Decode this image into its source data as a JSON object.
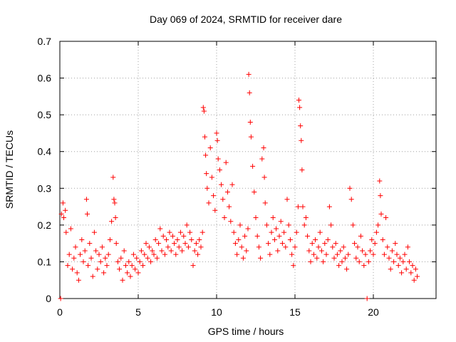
{
  "chart_data": {
    "type": "scatter",
    "title": "Day 069 of 2024, SRMTID for receiver dare",
    "xlabel": "GPS time / hours",
    "ylabel": "SRMTID / TECUs",
    "xlim": [
      0,
      24
    ],
    "ylim": [
      0,
      0.7
    ],
    "xticks": [
      0,
      5,
      10,
      15,
      20
    ],
    "xtick_labels": [
      "0",
      "5",
      "10",
      "15",
      "20"
    ],
    "yticks": [
      0,
      0.1,
      0.2,
      0.3,
      0.4,
      0.5,
      0.6,
      0.7
    ],
    "ytick_labels": [
      "0",
      "0.1",
      "0.2",
      "0.3",
      "0.4",
      "0.5",
      "0.6",
      "0.7"
    ],
    "grid": true,
    "marker": "plus",
    "color": "#ff0000",
    "series": [
      {
        "name": "SRMTID",
        "points": [
          [
            0.05,
            0.0
          ],
          [
            0.1,
            0.23
          ],
          [
            0.2,
            0.26
          ],
          [
            0.25,
            0.22
          ],
          [
            0.35,
            0.24
          ],
          [
            0.4,
            0.18
          ],
          [
            0.5,
            0.09
          ],
          [
            0.6,
            0.12
          ],
          [
            0.7,
            0.19
          ],
          [
            0.8,
            0.08
          ],
          [
            0.9,
            0.11
          ],
          [
            1.0,
            0.14
          ],
          [
            1.1,
            0.07
          ],
          [
            1.2,
            0.05
          ],
          [
            1.3,
            0.12
          ],
          [
            1.4,
            0.16
          ],
          [
            1.5,
            0.1
          ],
          [
            1.6,
            0.13
          ],
          [
            1.7,
            0.27
          ],
          [
            1.75,
            0.23
          ],
          [
            1.8,
            0.09
          ],
          [
            1.9,
            0.15
          ],
          [
            2.0,
            0.11
          ],
          [
            2.1,
            0.06
          ],
          [
            2.2,
            0.18
          ],
          [
            2.3,
            0.13
          ],
          [
            2.4,
            0.08
          ],
          [
            2.5,
            0.12
          ],
          [
            2.6,
            0.1
          ],
          [
            2.7,
            0.14
          ],
          [
            2.8,
            0.07
          ],
          [
            2.9,
            0.11
          ],
          [
            3.0,
            0.09
          ],
          [
            3.1,
            0.12
          ],
          [
            3.2,
            0.16
          ],
          [
            3.3,
            0.21
          ],
          [
            3.4,
            0.33
          ],
          [
            3.45,
            0.27
          ],
          [
            3.5,
            0.26
          ],
          [
            3.55,
            0.22
          ],
          [
            3.6,
            0.15
          ],
          [
            3.7,
            0.1
          ],
          [
            3.8,
            0.08
          ],
          [
            3.9,
            0.11
          ],
          [
            4.0,
            0.05
          ],
          [
            4.1,
            0.13
          ],
          [
            4.2,
            0.09
          ],
          [
            4.3,
            0.07
          ],
          [
            4.4,
            0.1
          ],
          [
            4.5,
            0.06
          ],
          [
            4.6,
            0.09
          ],
          [
            4.7,
            0.12
          ],
          [
            4.8,
            0.08
          ],
          [
            4.9,
            0.11
          ],
          [
            5.0,
            0.07
          ],
          [
            5.1,
            0.1
          ],
          [
            5.2,
            0.13
          ],
          [
            5.3,
            0.09
          ],
          [
            5.4,
            0.12
          ],
          [
            5.5,
            0.15
          ],
          [
            5.6,
            0.11
          ],
          [
            5.7,
            0.14
          ],
          [
            5.8,
            0.1
          ],
          [
            5.9,
            0.13
          ],
          [
            6.0,
            0.12
          ],
          [
            6.1,
            0.16
          ],
          [
            6.2,
            0.11
          ],
          [
            6.3,
            0.15
          ],
          [
            6.4,
            0.19
          ],
          [
            6.5,
            0.13
          ],
          [
            6.6,
            0.17
          ],
          [
            6.7,
            0.12
          ],
          [
            6.8,
            0.16
          ],
          [
            6.9,
            0.14
          ],
          [
            7.0,
            0.18
          ],
          [
            7.1,
            0.13
          ],
          [
            7.2,
            0.17
          ],
          [
            7.3,
            0.15
          ],
          [
            7.4,
            0.12
          ],
          [
            7.5,
            0.16
          ],
          [
            7.6,
            0.14
          ],
          [
            7.7,
            0.18
          ],
          [
            7.8,
            0.13
          ],
          [
            7.9,
            0.17
          ],
          [
            8.0,
            0.15
          ],
          [
            8.1,
            0.2
          ],
          [
            8.2,
            0.14
          ],
          [
            8.3,
            0.18
          ],
          [
            8.4,
            0.16
          ],
          [
            8.5,
            0.09
          ],
          [
            8.6,
            0.13
          ],
          [
            8.7,
            0.15
          ],
          [
            8.8,
            0.12
          ],
          [
            8.9,
            0.16
          ],
          [
            9.0,
            0.14
          ],
          [
            9.1,
            0.18
          ],
          [
            9.15,
            0.52
          ],
          [
            9.2,
            0.51
          ],
          [
            9.25,
            0.44
          ],
          [
            9.3,
            0.39
          ],
          [
            9.35,
            0.34
          ],
          [
            9.4,
            0.3
          ],
          [
            9.5,
            0.26
          ],
          [
            9.6,
            0.41
          ],
          [
            9.7,
            0.33
          ],
          [
            9.8,
            0.28
          ],
          [
            9.9,
            0.24
          ],
          [
            10.0,
            0.45
          ],
          [
            10.05,
            0.43
          ],
          [
            10.1,
            0.38
          ],
          [
            10.2,
            0.35
          ],
          [
            10.3,
            0.31
          ],
          [
            10.4,
            0.27
          ],
          [
            10.5,
            0.22
          ],
          [
            10.6,
            0.37
          ],
          [
            10.7,
            0.29
          ],
          [
            10.8,
            0.25
          ],
          [
            10.9,
            0.21
          ],
          [
            11.0,
            0.31
          ],
          [
            11.1,
            0.18
          ],
          [
            11.2,
            0.15
          ],
          [
            11.3,
            0.12
          ],
          [
            11.4,
            0.16
          ],
          [
            11.5,
            0.2
          ],
          [
            11.6,
            0.14
          ],
          [
            11.7,
            0.11
          ],
          [
            11.8,
            0.17
          ],
          [
            11.9,
            0.13
          ],
          [
            12.0,
            0.19
          ],
          [
            12.05,
            0.61
          ],
          [
            12.1,
            0.56
          ],
          [
            12.15,
            0.48
          ],
          [
            12.2,
            0.44
          ],
          [
            12.3,
            0.36
          ],
          [
            12.4,
            0.29
          ],
          [
            12.5,
            0.22
          ],
          [
            12.6,
            0.17
          ],
          [
            12.7,
            0.14
          ],
          [
            12.8,
            0.11
          ],
          [
            12.9,
            0.38
          ],
          [
            13.0,
            0.41
          ],
          [
            13.05,
            0.33
          ],
          [
            13.1,
            0.26
          ],
          [
            13.2,
            0.2
          ],
          [
            13.3,
            0.15
          ],
          [
            13.4,
            0.12
          ],
          [
            13.5,
            0.18
          ],
          [
            13.6,
            0.22
          ],
          [
            13.7,
            0.16
          ],
          [
            13.8,
            0.19
          ],
          [
            13.9,
            0.13
          ],
          [
            14.0,
            0.17
          ],
          [
            14.1,
            0.21
          ],
          [
            14.2,
            0.15
          ],
          [
            14.3,
            0.18
          ],
          [
            14.4,
            0.14
          ],
          [
            14.5,
            0.27
          ],
          [
            14.6,
            0.2
          ],
          [
            14.7,
            0.16
          ],
          [
            14.8,
            0.12
          ],
          [
            14.9,
            0.09
          ],
          [
            15.0,
            0.14
          ],
          [
            15.1,
            0.18
          ],
          [
            15.2,
            0.25
          ],
          [
            15.25,
            0.54
          ],
          [
            15.3,
            0.52
          ],
          [
            15.35,
            0.47
          ],
          [
            15.4,
            0.43
          ],
          [
            15.45,
            0.35
          ],
          [
            15.5,
            0.25
          ],
          [
            15.6,
            0.2
          ],
          [
            15.7,
            0.22
          ],
          [
            15.8,
            0.17
          ],
          [
            15.9,
            0.13
          ],
          [
            16.0,
            0.1
          ],
          [
            16.1,
            0.15
          ],
          [
            16.2,
            0.12
          ],
          [
            16.3,
            0.16
          ],
          [
            16.4,
            0.11
          ],
          [
            16.5,
            0.14
          ],
          [
            16.6,
            0.18
          ],
          [
            16.7,
            0.13
          ],
          [
            16.8,
            0.1
          ],
          [
            16.9,
            0.15
          ],
          [
            17.0,
            0.12
          ],
          [
            17.1,
            0.16
          ],
          [
            17.2,
            0.25
          ],
          [
            17.3,
            0.2
          ],
          [
            17.4,
            0.14
          ],
          [
            17.5,
            0.11
          ],
          [
            17.6,
            0.15
          ],
          [
            17.7,
            0.12
          ],
          [
            17.8,
            0.09
          ],
          [
            17.9,
            0.13
          ],
          [
            18.0,
            0.1
          ],
          [
            18.1,
            0.14
          ],
          [
            18.2,
            0.11
          ],
          [
            18.3,
            0.08
          ],
          [
            18.4,
            0.12
          ],
          [
            18.5,
            0.3
          ],
          [
            18.6,
            0.27
          ],
          [
            18.7,
            0.2
          ],
          [
            18.8,
            0.15
          ],
          [
            18.9,
            0.11
          ],
          [
            19.0,
            0.14
          ],
          [
            19.1,
            0.1
          ],
          [
            19.2,
            0.17
          ],
          [
            19.3,
            0.13
          ],
          [
            19.4,
            0.09
          ],
          [
            19.5,
            0.12
          ],
          [
            19.6,
            0.0
          ],
          [
            19.7,
            0.1
          ],
          [
            19.8,
            0.13
          ],
          [
            19.9,
            0.16
          ],
          [
            20.0,
            0.12
          ],
          [
            20.1,
            0.15
          ],
          [
            20.2,
            0.18
          ],
          [
            20.3,
            0.2
          ],
          [
            20.4,
            0.32
          ],
          [
            20.45,
            0.28
          ],
          [
            20.5,
            0.23
          ],
          [
            20.6,
            0.16
          ],
          [
            20.7,
            0.12
          ],
          [
            20.8,
            0.22
          ],
          [
            20.9,
            0.14
          ],
          [
            21.0,
            0.11
          ],
          [
            21.1,
            0.08
          ],
          [
            21.2,
            0.13
          ],
          [
            21.3,
            0.1
          ],
          [
            21.4,
            0.15
          ],
          [
            21.5,
            0.12
          ],
          [
            21.6,
            0.09
          ],
          [
            21.7,
            0.11
          ],
          [
            21.8,
            0.07
          ],
          [
            21.9,
            0.1
          ],
          [
            22.0,
            0.12
          ],
          [
            22.1,
            0.08
          ],
          [
            22.2,
            0.14
          ],
          [
            22.3,
            0.1
          ],
          [
            22.4,
            0.07
          ],
          [
            22.5,
            0.09
          ],
          [
            22.6,
            0.05
          ],
          [
            22.7,
            0.08
          ],
          [
            22.8,
            0.06
          ]
        ]
      }
    ]
  }
}
